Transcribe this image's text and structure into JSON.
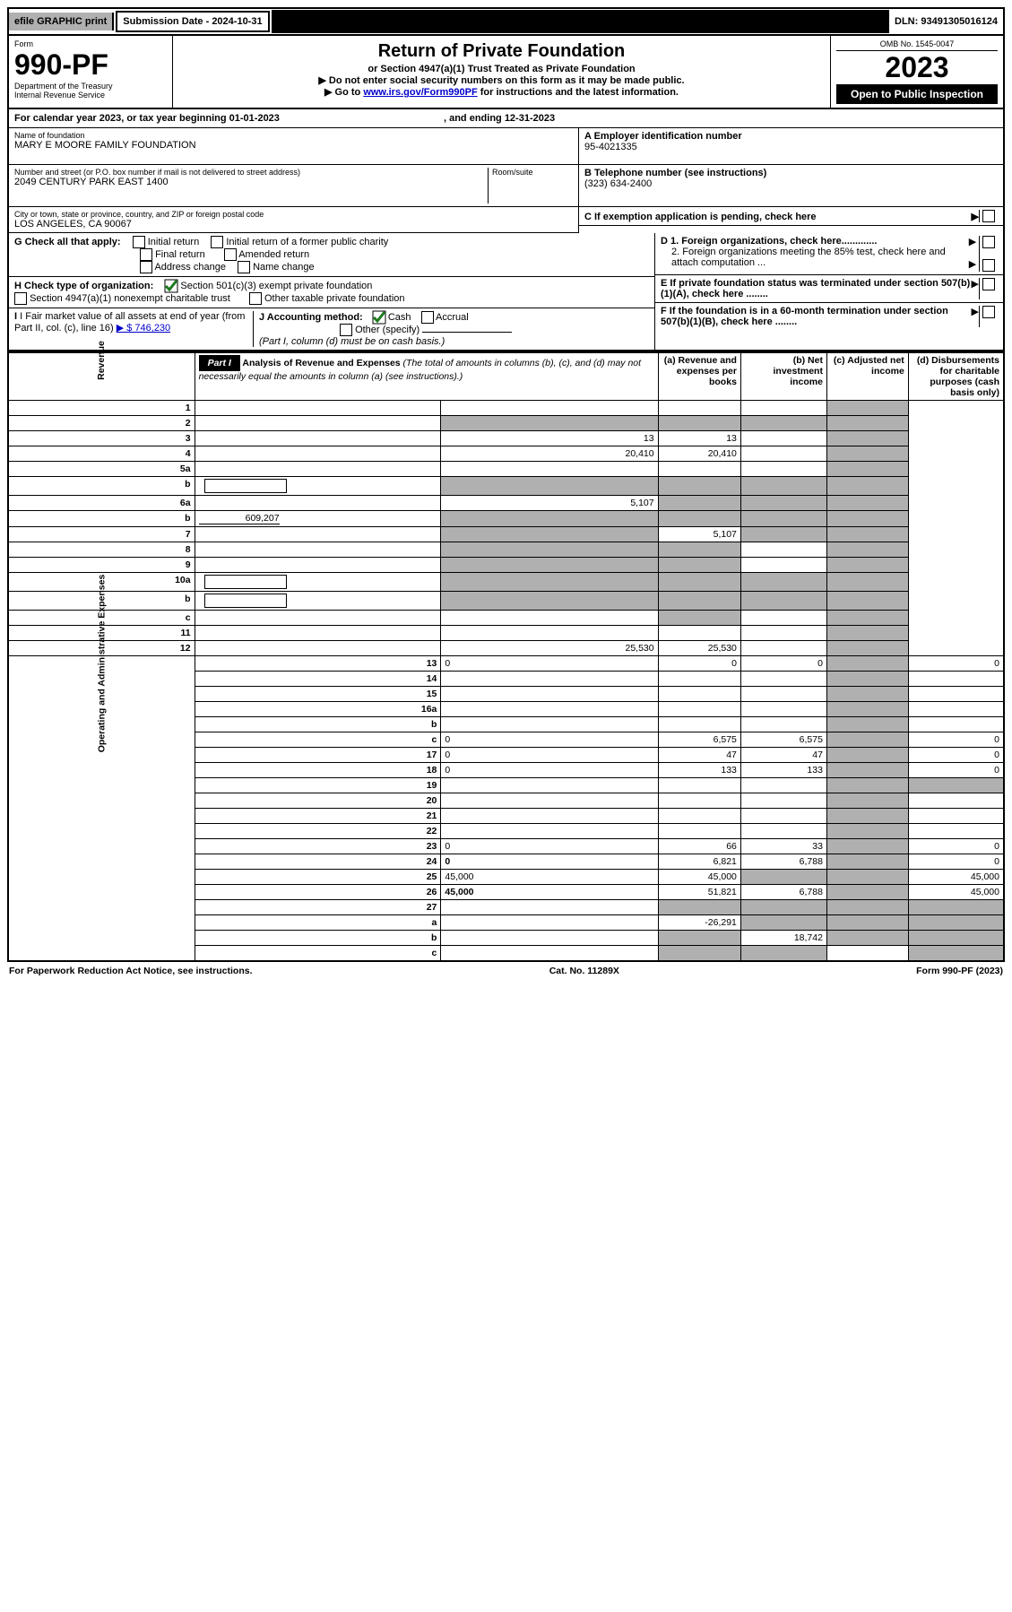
{
  "topbar": {
    "efile": "efile GRAPHIC print",
    "submission": "Submission Date - 2024-10-31",
    "dln": "DLN: 93491305016124"
  },
  "header": {
    "form_label": "Form",
    "form_number": "990-PF",
    "dept": "Department of the Treasury",
    "irs": "Internal Revenue Service",
    "title": "Return of Private Foundation",
    "subtitle": "or Section 4947(a)(1) Trust Treated as Private Foundation",
    "note1": "▶ Do not enter social security numbers on this form as it may be made public.",
    "note2_pre": "▶ Go to ",
    "note2_link": "www.irs.gov/Form990PF",
    "note2_post": " for instructions and the latest information.",
    "omb": "OMB No. 1545-0047",
    "year": "2023",
    "open": "Open to Public Inspection"
  },
  "cal": {
    "line": "For calendar year 2023, or tax year beginning 01-01-2023",
    "ending": ", and ending 12-31-2023"
  },
  "entity": {
    "name_label": "Name of foundation",
    "name": "MARY E MOORE FAMILY FOUNDATION",
    "addr_label": "Number and street (or P.O. box number if mail is not delivered to street address)",
    "addr": "2049 CENTURY PARK EAST 1400",
    "room_label": "Room/suite",
    "city_label": "City or town, state or province, country, and ZIP or foreign postal code",
    "city": "LOS ANGELES, CA  90067",
    "A_label": "A Employer identification number",
    "A_val": "95-4021335",
    "B_label": "B Telephone number (see instructions)",
    "B_val": "(323) 634-2400",
    "C_label": "C If exemption application is pending, check here",
    "D1": "D 1. Foreign organizations, check here.............",
    "D2": "2. Foreign organizations meeting the 85% test, check here and attach computation ...",
    "E": "E  If private foundation status was terminated under section 507(b)(1)(A), check here ........",
    "F": "F  If the foundation is in a 60-month termination under section 507(b)(1)(B), check here ........"
  },
  "G": {
    "label": "G Check all that apply:",
    "opts": [
      "Initial return",
      "Initial return of a former public charity",
      "Final return",
      "Amended return",
      "Address change",
      "Name change"
    ]
  },
  "H": {
    "label": "H Check type of organization:",
    "opt1": "Section 501(c)(3) exempt private foundation",
    "opt2": "Section 4947(a)(1) nonexempt charitable trust",
    "opt3": "Other taxable private foundation"
  },
  "I": {
    "label": "I Fair market value of all assets at end of year (from Part II, col. (c), line 16)",
    "val": "▶ $  746,230"
  },
  "J": {
    "label": "J Accounting method:",
    "cash": "Cash",
    "accrual": "Accrual",
    "other": "Other (specify)",
    "note": "(Part I, column (d) must be on cash basis.)"
  },
  "part1": {
    "label": "Part I",
    "title": "Analysis of Revenue and Expenses",
    "title_paren": "(The total of amounts in columns (b), (c), and (d) may not necessarily equal the amounts in column (a) (see instructions).)",
    "col_a": "(a)   Revenue and expenses per books",
    "col_b": "(b)   Net investment income",
    "col_c": "(c)   Adjusted net income",
    "col_d": "(d)   Disbursements for charitable purposes (cash basis only)"
  },
  "sides": {
    "rev": "Revenue",
    "exp": "Operating and Administrative Expenses"
  },
  "lines": [
    {
      "n": "1",
      "d": "",
      "a": "",
      "b": "",
      "c": "",
      "dGray": true
    },
    {
      "n": "2",
      "d": "",
      "a": "",
      "b": "",
      "c": "",
      "allGray": true
    },
    {
      "n": "3",
      "d": "",
      "a": "13",
      "b": "13",
      "c": "",
      "dGray": true
    },
    {
      "n": "4",
      "d": "",
      "a": "20,410",
      "b": "20,410",
      "c": "",
      "dGray": true
    },
    {
      "n": "5a",
      "d": "",
      "a": "",
      "b": "",
      "c": "",
      "dGray": true
    },
    {
      "n": "b",
      "d": "",
      "a": "",
      "b": "",
      "c": "",
      "abcGray": true,
      "dGray": true,
      "box": true
    },
    {
      "n": "6a",
      "d": "",
      "a": "5,107",
      "b": "",
      "c": "",
      "bcGray": true,
      "dGray": true
    },
    {
      "n": "b",
      "d": "",
      "a": "",
      "b": "",
      "c": "",
      "abcGray": true,
      "dGray": true,
      "boxVal": "609,207"
    },
    {
      "n": "7",
      "d": "",
      "a": "",
      "b": "5,107",
      "c": "",
      "aGray": true,
      "cGray": true,
      "dGray": true
    },
    {
      "n": "8",
      "d": "",
      "a": "",
      "b": "",
      "c": "",
      "aGray": true,
      "bGray": true,
      "dGray": true
    },
    {
      "n": "9",
      "d": "",
      "a": "",
      "b": "",
      "c": "",
      "aGray": true,
      "bGray": true,
      "dGray": true
    },
    {
      "n": "10a",
      "d": "",
      "a": "",
      "b": "",
      "c": "",
      "abcGray": true,
      "dGray": true,
      "box": true
    },
    {
      "n": "b",
      "d": "",
      "a": "",
      "b": "",
      "c": "",
      "abcGray": true,
      "dGray": true,
      "box": true
    },
    {
      "n": "c",
      "d": "",
      "a": "",
      "b": "",
      "c": "",
      "bGray": true,
      "dGray": true
    },
    {
      "n": "11",
      "d": "",
      "a": "",
      "b": "",
      "c": "",
      "dGray": true
    },
    {
      "n": "12",
      "d": "",
      "a": "25,530",
      "b": "25,530",
      "c": "",
      "bold": true,
      "dGray": true
    },
    {
      "n": "13",
      "d": "0",
      "a": "0",
      "b": "0",
      "c": "",
      "cGray": true
    },
    {
      "n": "14",
      "d": "",
      "a": "",
      "b": "",
      "c": "",
      "cGray": true
    },
    {
      "n": "15",
      "d": "",
      "a": "",
      "b": "",
      "c": "",
      "cGray": true
    },
    {
      "n": "16a",
      "d": "",
      "a": "",
      "b": "",
      "c": "",
      "cGray": true
    },
    {
      "n": "b",
      "d": "",
      "a": "",
      "b": "",
      "c": "",
      "cGray": true
    },
    {
      "n": "c",
      "d": "0",
      "a": "6,575",
      "b": "6,575",
      "c": "",
      "cGray": true
    },
    {
      "n": "17",
      "d": "0",
      "a": "47",
      "b": "47",
      "c": "",
      "cGray": true
    },
    {
      "n": "18",
      "d": "0",
      "a": "133",
      "b": "133",
      "c": "",
      "cGray": true
    },
    {
      "n": "19",
      "d": "",
      "a": "",
      "b": "",
      "c": "",
      "cGray": true,
      "dGray": true
    },
    {
      "n": "20",
      "d": "",
      "a": "",
      "b": "",
      "c": "",
      "cGray": true
    },
    {
      "n": "21",
      "d": "",
      "a": "",
      "b": "",
      "c": "",
      "cGray": true
    },
    {
      "n": "22",
      "d": "",
      "a": "",
      "b": "",
      "c": "",
      "cGray": true
    },
    {
      "n": "23",
      "d": "0",
      "a": "66",
      "b": "33",
      "c": "",
      "cGray": true
    },
    {
      "n": "24",
      "d": "0",
      "a": "6,821",
      "b": "6,788",
      "c": "",
      "bold": true,
      "cGray": true
    },
    {
      "n": "25",
      "d": "45,000",
      "a": "45,000",
      "b": "",
      "c": "",
      "bGray": true,
      "cGray": true
    },
    {
      "n": "26",
      "d": "45,000",
      "a": "51,821",
      "b": "6,788",
      "c": "",
      "bold": true,
      "cGray": true
    },
    {
      "n": "27",
      "d": "",
      "a": "",
      "b": "",
      "c": "",
      "allGray2": true
    },
    {
      "n": "a",
      "d": "",
      "a": "-26,291",
      "b": "",
      "c": "",
      "bold": true,
      "bGray": true,
      "cGray": true,
      "dGray": true
    },
    {
      "n": "b",
      "d": "",
      "a": "",
      "b": "18,742",
      "c": "",
      "bold": true,
      "aGray": true,
      "cGray": true,
      "dGray": true
    },
    {
      "n": "c",
      "d": "",
      "a": "",
      "b": "",
      "c": "",
      "bold": true,
      "aGray": true,
      "bGray": true,
      "dGray": true
    }
  ],
  "footer": {
    "left": "For Paperwork Reduction Act Notice, see instructions.",
    "mid": "Cat. No. 11289X",
    "right": "Form 990-PF (2023)"
  }
}
